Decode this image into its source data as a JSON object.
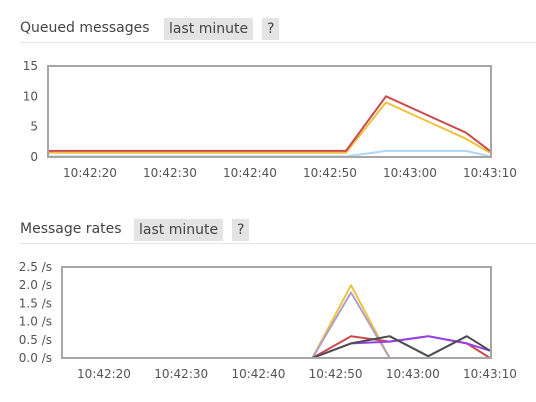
{
  "queued": {
    "title": "Queued messages",
    "range_label": "last minute",
    "help_label": "?"
  },
  "rates": {
    "title": "Message rates",
    "range_label": "last minute",
    "help_label": "?"
  },
  "chart_data": [
    {
      "type": "line",
      "title": "Queued messages",
      "xlabel": "",
      "ylabel": "",
      "x_ticks": [
        "10:42:20",
        "10:42:30",
        "10:42:40",
        "10:42:50",
        "10:43:00",
        "10:43:10"
      ],
      "y_ticks": [
        "0",
        "5",
        "10",
        "15"
      ],
      "ylim": [
        0,
        15
      ],
      "x": [
        "10:42:12",
        "10:42:52",
        "10:42:57",
        "10:43:02",
        "10:43:07",
        "10:43:12"
      ],
      "grid": false,
      "series": [
        {
          "color": "#edc240",
          "values": [
            0.7,
            0.7,
            9,
            6,
            3,
            0.7
          ]
        },
        {
          "color": "#afd8f8",
          "values": [
            0.1,
            0.1,
            1,
            1,
            1,
            0.1
          ]
        },
        {
          "color": "#cb4b4b",
          "values": [
            1,
            1,
            10,
            7,
            4,
            1
          ]
        }
      ]
    },
    {
      "type": "line",
      "title": "Message rates",
      "xlabel": "",
      "ylabel": "",
      "x_ticks": [
        "10:42:20",
        "10:42:30",
        "10:42:40",
        "10:42:50",
        "10:43:00",
        "10:43:10"
      ],
      "y_ticks": [
        "0.0 /s",
        "0.5 /s",
        "1.0 /s",
        "1.5 /s",
        "2.0 /s",
        "2.5 /s"
      ],
      "ylim": [
        0,
        2.5
      ],
      "x": [
        "10:42:12",
        "10:42:47",
        "10:42:52",
        "10:42:57",
        "10:43:02",
        "10:43:07",
        "10:43:12"
      ],
      "grid": false,
      "series": [
        {
          "color": "#edc240",
          "values": [
            0,
            0,
            2.0,
            0,
            0,
            0,
            0
          ]
        },
        {
          "color": "#b0a0c8",
          "values": [
            0,
            0,
            1.8,
            0,
            0,
            0,
            0
          ]
        },
        {
          "color": "#cb4b4b",
          "values": [
            0,
            0,
            0.6,
            0.45,
            0.6,
            0.4,
            0
          ]
        },
        {
          "color": "#9440ed",
          "values": [
            0,
            0,
            0.4,
            0.45,
            0.6,
            0.4,
            0.2
          ]
        },
        {
          "color": "#4d4d4d",
          "values": [
            0,
            0,
            0.4,
            0.6,
            0.05,
            0.6,
            0.2
          ]
        }
      ]
    }
  ]
}
